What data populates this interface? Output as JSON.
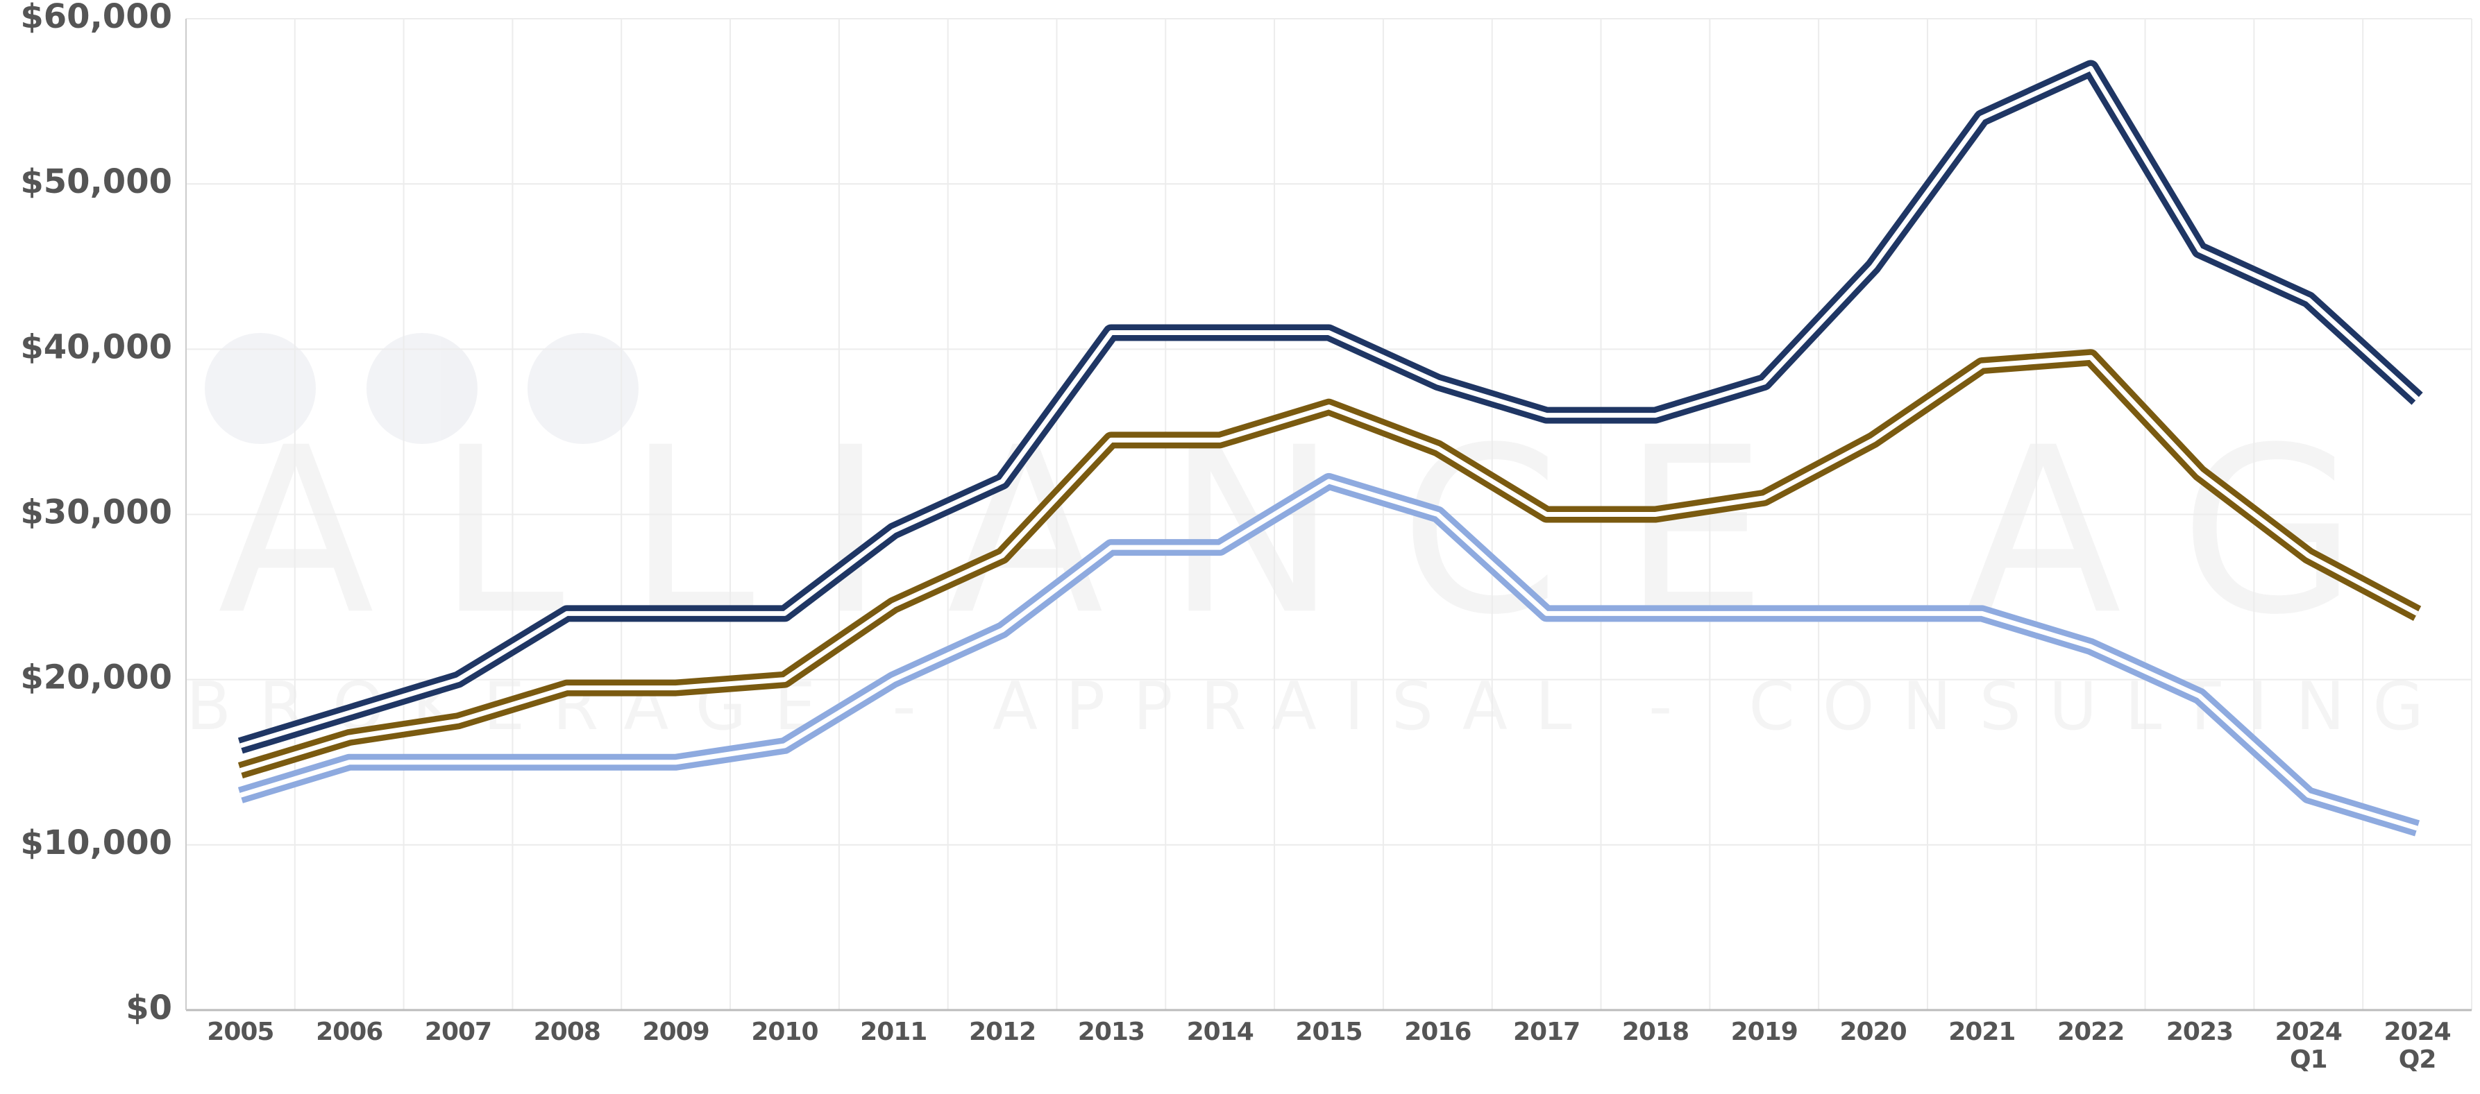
{
  "chart_data": {
    "type": "line",
    "watermark": {
      "title": "ALLIANCE AG",
      "subtitle": "BROKERAGE - APPRAISAL - CONSULTING"
    },
    "categories": [
      "2005",
      "2006",
      "2007",
      "2008",
      "2009",
      "2010",
      "2011",
      "2012",
      "2013",
      "2014",
      "2015",
      "2016",
      "2017",
      "2018",
      "2019",
      "2020",
      "2021",
      "2022",
      "2023",
      "2024 Q1",
      "2024 Q2"
    ],
    "series": [
      {
        "color": "#1f3664",
        "values": [
          16000,
          18000,
          20000,
          24000,
          24000,
          24000,
          29000,
          32000,
          41000,
          41000,
          41000,
          38000,
          36000,
          36000,
          38000,
          45000,
          54000,
          57000,
          46000,
          43000,
          37000
        ]
      },
      {
        "color": "#7a5a10",
        "values": [
          14500,
          16500,
          17500,
          19500,
          19500,
          20000,
          24500,
          27500,
          34500,
          34500,
          36500,
          34000,
          30000,
          30000,
          31000,
          34500,
          39000,
          39500,
          32500,
          27500,
          24000
        ]
      },
      {
        "color": "#8eaadf",
        "values": [
          13000,
          15000,
          15000,
          15000,
          15000,
          16000,
          20000,
          23000,
          28000,
          28000,
          32000,
          30000,
          24000,
          24000,
          24000,
          24000,
          24000,
          22000,
          19000,
          13000,
          11000
        ]
      }
    ],
    "ylim": [
      0,
      60000
    ],
    "yticks": [
      {
        "value": 0,
        "label": "$0"
      },
      {
        "value": 10000,
        "label": "$10,000"
      },
      {
        "value": 20000,
        "label": "$20,000"
      },
      {
        "value": 30000,
        "label": "$30,000"
      },
      {
        "value": 40000,
        "label": "$40,000"
      },
      {
        "value": 50000,
        "label": "$50,000"
      },
      {
        "value": 60000,
        "label": "$60,000"
      }
    ],
    "grid": true
  }
}
